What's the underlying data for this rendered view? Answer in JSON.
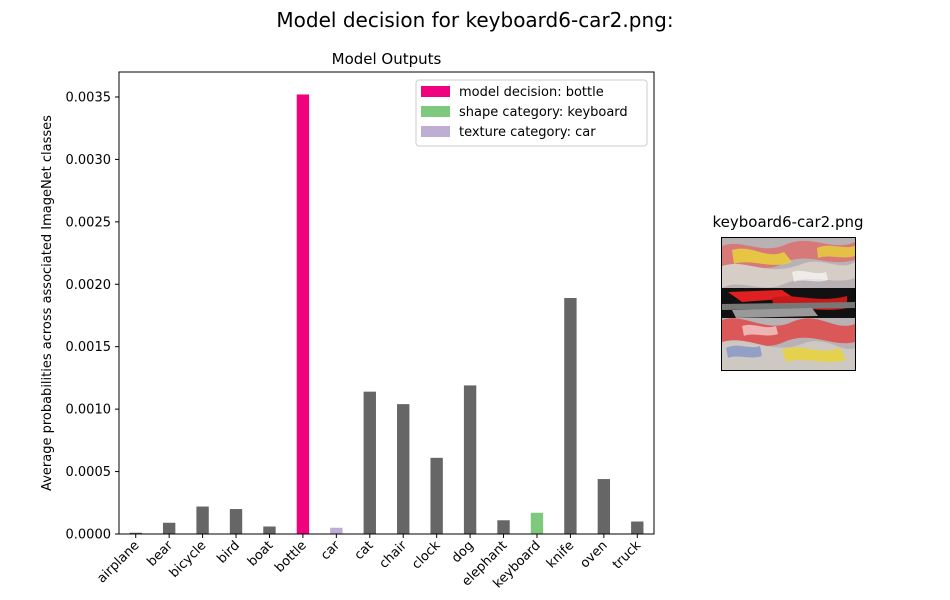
{
  "figure": {
    "title": "Model decision for keyboard6-car2.png:"
  },
  "chart_data": {
    "type": "bar",
    "title": "Model Outputs",
    "xlabel": "",
    "ylabel": "Average probabilities across associated ImageNet classes",
    "ylim": [
      0,
      0.0037
    ],
    "yticks": [
      "0.0000",
      "0.0005",
      "0.0010",
      "0.0015",
      "0.0020",
      "0.0025",
      "0.0030",
      "0.0035"
    ],
    "categories": [
      "airplane",
      "bear",
      "bicycle",
      "bird",
      "boat",
      "bottle",
      "car",
      "cat",
      "chair",
      "clock",
      "dog",
      "elephant",
      "keyboard",
      "knife",
      "oven",
      "truck"
    ],
    "values": [
      1e-05,
      9e-05,
      0.00022,
      0.0002,
      6e-05,
      0.00352,
      5e-05,
      0.00114,
      0.00104,
      0.00061,
      0.00119,
      0.00011,
      0.00017,
      0.00189,
      0.00044,
      0.0001
    ],
    "colors": {
      "default": "#666666",
      "decision": "#f0027f",
      "shape": "#7fc97f",
      "texture": "#beaed4"
    },
    "highlight": {
      "decision": "bottle",
      "shape": "keyboard",
      "texture": "car"
    },
    "legend": {
      "position": "top-right",
      "entries": [
        {
          "label": "model decision: bottle",
          "color": "#f0027f"
        },
        {
          "label": "shape category: keyboard",
          "color": "#7fc97f"
        },
        {
          "label": "texture category: car",
          "color": "#beaed4"
        }
      ]
    },
    "grid": false
  },
  "thumbnail": {
    "title": "keyboard6-car2.png"
  }
}
